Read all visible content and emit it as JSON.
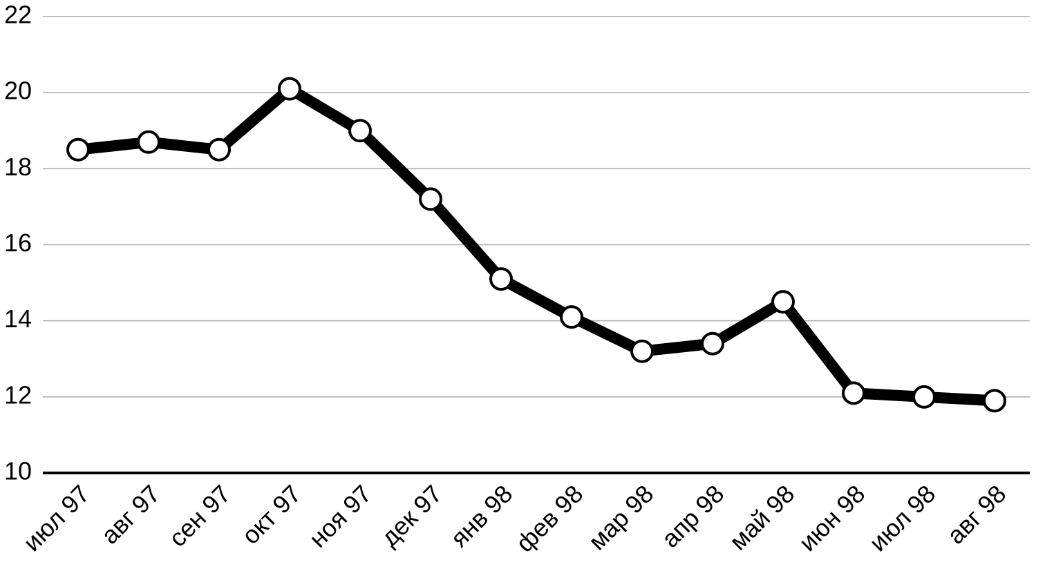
{
  "chart_data": {
    "type": "line",
    "categories": [
      "июл 97",
      "авг 97",
      "сен 97",
      "окт 97",
      "ноя 97",
      "дек 97",
      "янв 98",
      "фев 98",
      "мар 98",
      "апр 98",
      "май 98",
      "июн 98",
      "июл 98",
      "авг 98"
    ],
    "values": [
      18.5,
      18.7,
      18.5,
      20.1,
      19.0,
      17.2,
      15.1,
      14.1,
      13.2,
      13.4,
      14.5,
      12.1,
      12.0,
      11.9
    ],
    "color": "#000000",
    "ylim": [
      10,
      22
    ],
    "yticks": [
      10,
      12,
      14,
      16,
      18,
      20,
      22
    ],
    "grid": true
  }
}
